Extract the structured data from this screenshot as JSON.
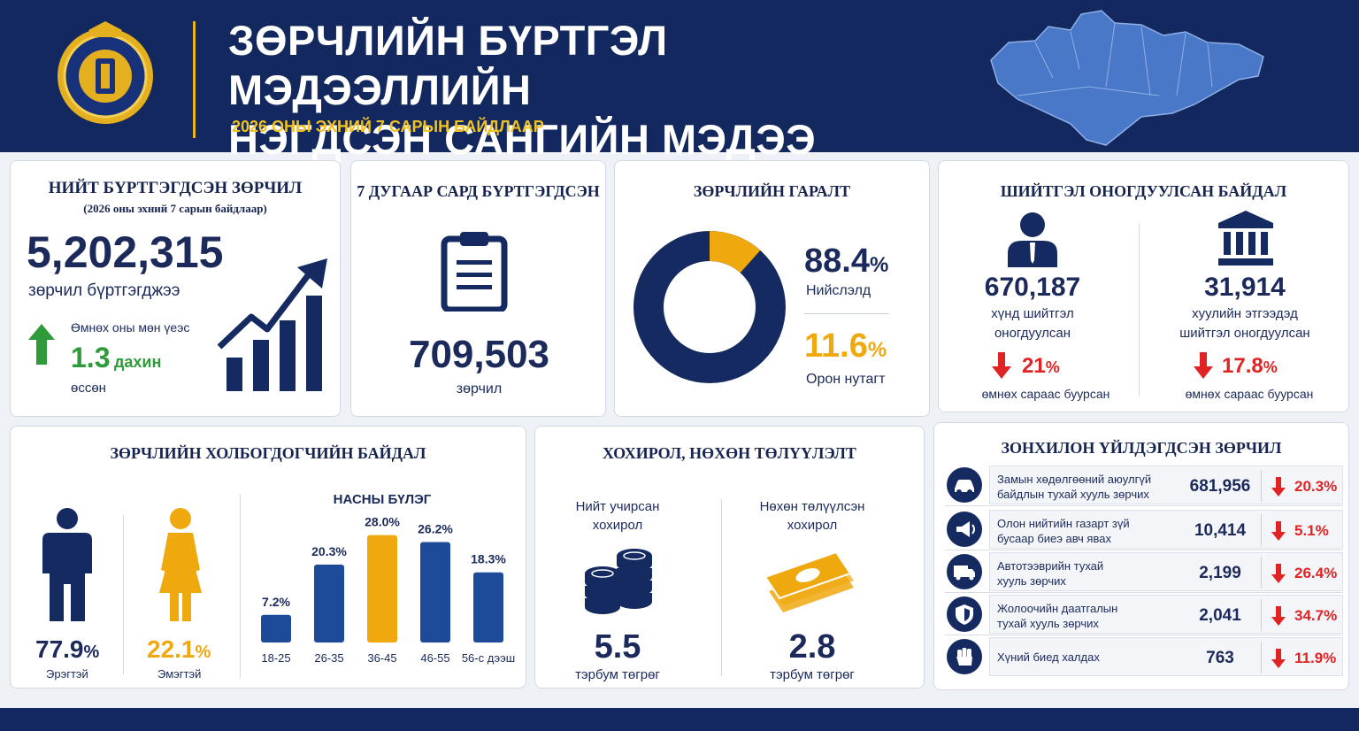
{
  "header": {
    "title_line1": "ЗӨРЧЛИЙН БҮРТГЭЛ МЭДЭЭЛЛИЙН",
    "title_line2": "НЭГДСЭН САНГИЙН МЭДЭЭ",
    "subtitle": "2026 ОНЫ ЭХНИЙ 7 САРЫН БАЙДЛААР",
    "emblem_icon": "prosecutor-emblem-icon",
    "map_icon": "mongolia-map-icon"
  },
  "total": {
    "title": "НИЙТ БҮРТГЭГДСЭН ЗӨРЧИЛ",
    "subtitle": "(2026 оны эхний 7 сарын байдлаар)",
    "value": "5,202,315",
    "caption": "зөрчил бүртгэгджээ",
    "compare_label": "Өмнөх оны мөн үеэс",
    "growth_value": "1.3",
    "growth_unit": "дахин",
    "growth_word": "өссөн"
  },
  "july": {
    "title": "7 ДУГААР САРД БҮРТГЭГДСЭН",
    "value": "709,503",
    "caption": "зөрчил"
  },
  "origin": {
    "title": "ЗӨРЧЛИЙН ГАРАЛТ",
    "capital_pct": "88.4",
    "capital_label": "Нийслэлд",
    "rural_pct": "11.6",
    "rural_label": "Орон нутагт",
    "percent_sign": "%",
    "capital_fraction": 0.884,
    "rural_fraction": 0.116,
    "colors": {
      "capital": "#152a61",
      "rural": "#f0a80f"
    }
  },
  "penalty": {
    "title": "ШИЙТГЭЛ ОНОГДУУЛСАН БАЙДАЛ",
    "persons_value": "670,187",
    "persons_label1": "хүнд шийтгэл",
    "persons_label2": "оногдуулсан",
    "persons_pct": "21",
    "persons_change": "өмнөх сараас буурсан",
    "legal_value": "31,914",
    "legal_label1": "хуулийн этгээдэд",
    "legal_label2": "шийтгэл оногдуулсан",
    "legal_pct": "17.8",
    "legal_change": "өмнөх сараас буурсан",
    "percent_sign": "%"
  },
  "offenders": {
    "title": "ЗӨРЧЛИЙН ХОЛБОГДОГЧИЙН БАЙДАЛ",
    "male_pct": "77.9",
    "male_label": "Эрэгтэй",
    "female_pct": "22.1",
    "female_label": "Эмэгтэй",
    "percent_sign": "%",
    "age_title": "НАСНЫ БҮЛЭГ"
  },
  "chart_data": {
    "type": "bar",
    "title": "НАСНЫ БҮЛЭГ",
    "categories": [
      "18-25",
      "26-35",
      "36-45",
      "46-55",
      "56-с дээш"
    ],
    "values": [
      7.2,
      20.3,
      28.0,
      26.2,
      18.3
    ],
    "labels": [
      "7.2%",
      "20.3%",
      "28.0%",
      "26.2%",
      "18.3%"
    ],
    "ylim": [
      0,
      30
    ],
    "colors": [
      "#1e4a9a",
      "#1e4a9a",
      "#f0a80f",
      "#1e4a9a",
      "#1e4a9a"
    ]
  },
  "damage": {
    "title": "ХОХИРОЛ, НӨХӨН ТӨЛҮҮЛЭЛТ",
    "loss_label1": "Нийт учирсан",
    "loss_label2": "хохирол",
    "loss_value": "5.5",
    "loss_unit": "тэрбум төгрөг",
    "comp_label1": "Нөхөн төлүүлсэн",
    "comp_label2": "хохирол",
    "comp_value": "2.8",
    "comp_unit": "тэрбум төгрөг"
  },
  "common": {
    "title": "ЗОНХИЛОН ҮЙЛДЭГДСЭН ЗӨРЧИЛ",
    "rows": [
      {
        "icon": "car-icon",
        "label1": "Замын хөдөлгөөний аюулгүй",
        "label2": "байдлын тухай хууль зөрчих",
        "value": "681,956",
        "pct": "20.3%"
      },
      {
        "icon": "megaphone-icon",
        "label1": "Олон нийтийн газарт зүй",
        "label2": "бусаар биеэ авч явах",
        "value": "10,414",
        "pct": "5.1%"
      },
      {
        "icon": "truck-icon",
        "label1": "Автотээврийн тухай",
        "label2": "хууль зөрчих",
        "value": "2,199",
        "pct": "26.4%"
      },
      {
        "icon": "shield-icon",
        "label1": "Жолоочийн даатгалын",
        "label2": "тухай хууль зөрчих",
        "value": "2,041",
        "pct": "34.7%"
      },
      {
        "icon": "fist-icon",
        "label1": "Хүний биед халдах",
        "label2": "",
        "value": "763",
        "pct": "11.9%"
      }
    ]
  }
}
